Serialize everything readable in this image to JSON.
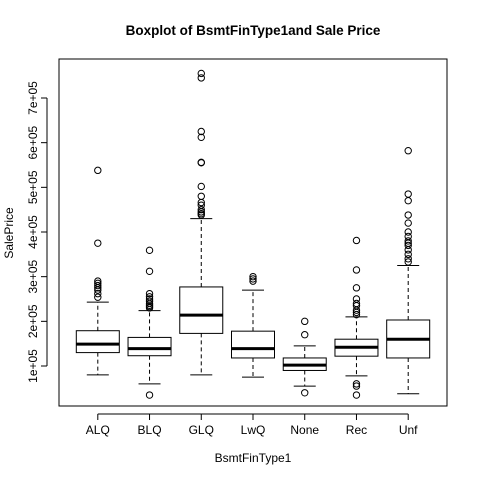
{
  "chart_data": {
    "type": "boxplot",
    "title": "Boxplot of BsmtFinType1and Sale Price",
    "xlabel": "BsmtFinType1",
    "ylabel": "SalePrice",
    "ylim": [
      0,
      760000
    ],
    "y_ticks": [
      100000,
      200000,
      300000,
      400000,
      500000,
      600000,
      700000
    ],
    "y_tick_labels": [
      "1e+05",
      "2e+05",
      "3e+05",
      "4e+05",
      "5e+05",
      "6e+05",
      "7e+05"
    ],
    "grid": false,
    "legend": "none",
    "categories": [
      "ALQ",
      "BLQ",
      "GLQ",
      "LwQ",
      "None",
      "Rec",
      "Unf"
    ],
    "boxes": [
      {
        "category": "ALQ",
        "whisker_low": 80000,
        "q1": 130000,
        "median": 149000,
        "q3": 179000,
        "whisker_high": 243000,
        "outliers": [
          254000,
          262000,
          270000,
          275000,
          280000,
          285000,
          290000,
          375000,
          538000
        ]
      },
      {
        "category": "BLQ",
        "whisker_low": 60000,
        "q1": 123000,
        "median": 139000,
        "q3": 164000,
        "whisker_high": 224000,
        "outliers": [
          35000,
          230000,
          233000,
          236000,
          240000,
          245000,
          250000,
          255000,
          262000,
          312000,
          359000
        ]
      },
      {
        "category": "GLQ",
        "whisker_low": 80000,
        "q1": 173000,
        "median": 214000,
        "q3": 277000,
        "whisker_high": 430000,
        "outliers": [
          438000,
          441000,
          445000,
          450000,
          460000,
          466000,
          480000,
          502000,
          555000,
          556000,
          612000,
          625000,
          745000,
          755000
        ]
      },
      {
        "category": "LwQ",
        "whisker_low": 75000,
        "q1": 118000,
        "median": 139000,
        "q3": 178000,
        "whisker_high": 270000,
        "outliers": [
          290000,
          295000,
          300000
        ]
      },
      {
        "category": "None",
        "whisker_low": 55000,
        "q1": 90000,
        "median": 102000,
        "q3": 118000,
        "whisker_high": 145000,
        "outliers": [
          40000,
          170000,
          200000
        ]
      },
      {
        "category": "Rec",
        "whisker_low": 78000,
        "q1": 122000,
        "median": 142000,
        "q3": 160000,
        "whisker_high": 210000,
        "outliers": [
          35000,
          55000,
          60000,
          215000,
          220000,
          225000,
          235000,
          240000,
          250000,
          275000,
          315000,
          381000
        ]
      },
      {
        "category": "Unf",
        "whisker_low": 38000,
        "q1": 118000,
        "median": 160000,
        "q3": 203000,
        "whisker_high": 325000,
        "outliers": [
          333000,
          340000,
          350000,
          360000,
          370000,
          375000,
          380000,
          390000,
          400000,
          420000,
          438000,
          470000,
          485000,
          582000
        ]
      }
    ]
  }
}
